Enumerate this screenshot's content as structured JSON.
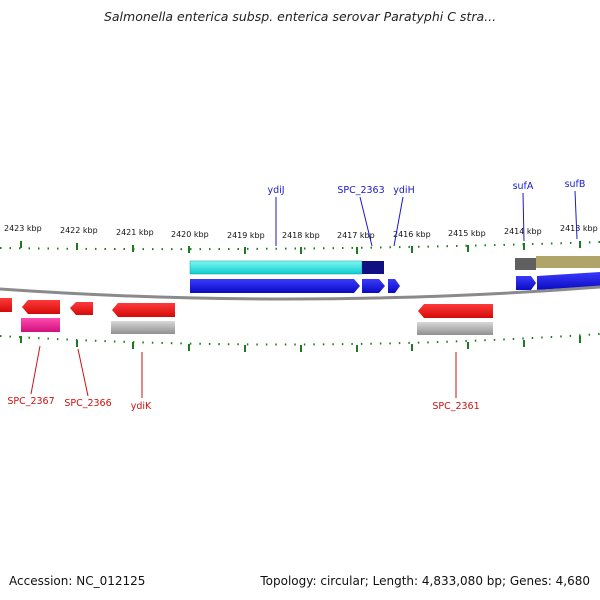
{
  "title": "Salmonella enterica subsp. enterica serovar Paratyphi C stra...",
  "footer": {
    "accession": "Accession: NC_012125",
    "topology": "Topology: circular; Length: 4,833,080 bp; Genes: 4,680"
  },
  "scale_ticks": [
    "2423 kbp",
    "2422 kbp",
    "2421 kbp",
    "2420 kbp",
    "2419 kbp",
    "2418 kbp",
    "2417 kbp",
    "2416 kbp",
    "2415 kbp",
    "2414 kbp",
    "2413 kbp"
  ],
  "gene_labels_top": [
    "ydiJ",
    "SPC_2363",
    "ydiH",
    "sufA",
    "sufB"
  ],
  "gene_labels_bottom": [
    "SPC_2367",
    "SPC_2366",
    "ydiK",
    "SPC_2361"
  ],
  "colors": {
    "forward_cds": "#1010e0",
    "reverse_cds": "#ee1111",
    "forward_gene_cyan": "#22e0e0",
    "forward_gene_navy": "#101080",
    "forward_gene_gray": "#606060",
    "forward_gene_olive": "#b0a468",
    "reverse_gene_pink": "#e81890",
    "reverse_gene_gray": "#aaaaaa",
    "backbone": "#8a8a8a",
    "tick": "#1e7a1e",
    "label_top": "#1a1acc",
    "label_bottom": "#cc1111"
  }
}
